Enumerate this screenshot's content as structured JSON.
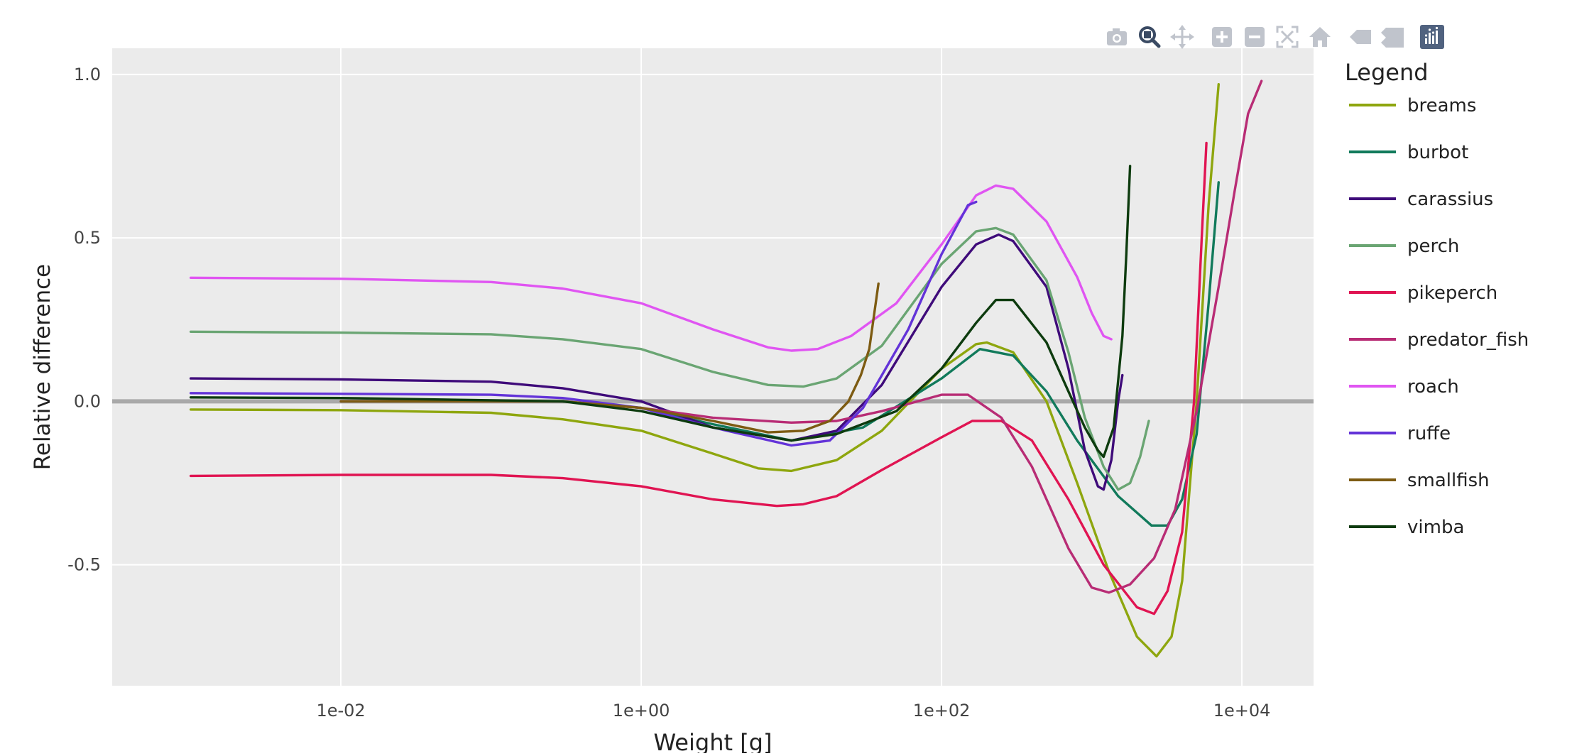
{
  "modebar": {
    "buttons": [
      {
        "name": "camera-icon"
      },
      {
        "name": "zoom-icon"
      },
      {
        "name": "pan-icon"
      },
      {
        "name": "zoom-in-icon"
      },
      {
        "name": "zoom-out-icon"
      },
      {
        "name": "autoscale-icon"
      },
      {
        "name": "reset-axes-icon"
      },
      {
        "name": "hover-closest-icon"
      },
      {
        "name": "hover-compare-icon"
      },
      {
        "name": "plotly-logo-icon"
      }
    ]
  },
  "chart_data": {
    "type": "line",
    "xlabel": "Weight [g]",
    "ylabel": "Relative difference",
    "xscale": "log",
    "xlim": [
      0.0003,
      30000
    ],
    "ylim": [
      -0.87,
      1.08
    ],
    "xticks": [
      0.01,
      1,
      100,
      10000
    ],
    "xtick_labels": [
      "1e-02",
      "1e+00",
      "1e+02",
      "1e+04"
    ],
    "yticks": [
      1.0,
      0.5,
      0.0,
      -0.5
    ],
    "ytick_labels": [
      "1.0",
      "0.5",
      "0.0",
      "-0.5"
    ],
    "grid": true,
    "background": "#ebebeb",
    "reference_line": {
      "y": 0,
      "color": "#a9a9a9"
    },
    "legend": {
      "title": "Legend",
      "position": "right"
    },
    "series": [
      {
        "name": "breams",
        "color": "#8ea60e",
        "points": [
          [
            0.001,
            -0.025
          ],
          [
            0.01,
            -0.027
          ],
          [
            0.1,
            -0.035
          ],
          [
            0.3,
            -0.055
          ],
          [
            1,
            -0.09
          ],
          [
            3,
            -0.16
          ],
          [
            6,
            -0.205
          ],
          [
            10,
            -0.213
          ],
          [
            20,
            -0.18
          ],
          [
            40,
            -0.09
          ],
          [
            100,
            0.1
          ],
          [
            170,
            0.175
          ],
          [
            200,
            0.18
          ],
          [
            300,
            0.15
          ],
          [
            500,
            0.0
          ],
          [
            800,
            -0.25
          ],
          [
            1300,
            -0.52
          ],
          [
            2000,
            -0.72
          ],
          [
            2700,
            -0.78
          ],
          [
            3400,
            -0.72
          ],
          [
            4000,
            -0.55
          ],
          [
            5000,
            0.0
          ],
          [
            6000,
            0.6
          ],
          [
            7000,
            0.97
          ]
        ]
      },
      {
        "name": "burbot",
        "color": "#117a5b",
        "points": [
          [
            0.01,
            0.0
          ],
          [
            0.3,
            0.0
          ],
          [
            1,
            -0.02
          ],
          [
            3,
            -0.07
          ],
          [
            10,
            -0.12
          ],
          [
            30,
            -0.08
          ],
          [
            100,
            0.07
          ],
          [
            180,
            0.16
          ],
          [
            300,
            0.14
          ],
          [
            500,
            0.03
          ],
          [
            800,
            -0.12
          ],
          [
            1500,
            -0.29
          ],
          [
            2500,
            -0.38
          ],
          [
            3200,
            -0.38
          ],
          [
            4000,
            -0.3
          ],
          [
            5000,
            -0.1
          ],
          [
            6000,
            0.3
          ],
          [
            7000,
            0.67
          ]
        ]
      },
      {
        "name": "carassius",
        "color": "#3f0b7a",
        "points": [
          [
            0.001,
            0.07
          ],
          [
            0.01,
            0.067
          ],
          [
            0.1,
            0.06
          ],
          [
            0.3,
            0.04
          ],
          [
            1,
            0.0
          ],
          [
            3,
            -0.08
          ],
          [
            10,
            -0.12
          ],
          [
            20,
            -0.09
          ],
          [
            40,
            0.05
          ],
          [
            100,
            0.35
          ],
          [
            170,
            0.48
          ],
          [
            240,
            0.51
          ],
          [
            300,
            0.49
          ],
          [
            500,
            0.35
          ],
          [
            700,
            0.1
          ],
          [
            900,
            -0.15
          ],
          [
            1100,
            -0.26
          ],
          [
            1200,
            -0.27
          ],
          [
            1350,
            -0.18
          ],
          [
            1500,
            0.0
          ],
          [
            1600,
            0.08
          ]
        ]
      },
      {
        "name": "perch",
        "color": "#6aa573",
        "points": [
          [
            0.001,
            0.213
          ],
          [
            0.01,
            0.21
          ],
          [
            0.1,
            0.205
          ],
          [
            0.3,
            0.19
          ],
          [
            1,
            0.16
          ],
          [
            3,
            0.09
          ],
          [
            7,
            0.05
          ],
          [
            12,
            0.045
          ],
          [
            20,
            0.07
          ],
          [
            40,
            0.17
          ],
          [
            100,
            0.42
          ],
          [
            170,
            0.52
          ],
          [
            230,
            0.53
          ],
          [
            300,
            0.51
          ],
          [
            500,
            0.37
          ],
          [
            700,
            0.15
          ],
          [
            900,
            -0.05
          ],
          [
            1200,
            -0.2
          ],
          [
            1500,
            -0.27
          ],
          [
            1800,
            -0.25
          ],
          [
            2100,
            -0.17
          ],
          [
            2400,
            -0.06
          ]
        ]
      },
      {
        "name": "pikeperch",
        "color": "#e01452",
        "points": [
          [
            0.001,
            -0.228
          ],
          [
            0.01,
            -0.225
          ],
          [
            0.1,
            -0.225
          ],
          [
            0.3,
            -0.235
          ],
          [
            1,
            -0.26
          ],
          [
            3,
            -0.3
          ],
          [
            8,
            -0.32
          ],
          [
            12,
            -0.315
          ],
          [
            20,
            -0.29
          ],
          [
            40,
            -0.21
          ],
          [
            100,
            -0.11
          ],
          [
            160,
            -0.06
          ],
          [
            250,
            -0.06
          ],
          [
            400,
            -0.12
          ],
          [
            700,
            -0.3
          ],
          [
            1200,
            -0.5
          ],
          [
            2000,
            -0.63
          ],
          [
            2600,
            -0.65
          ],
          [
            3200,
            -0.58
          ],
          [
            4000,
            -0.4
          ],
          [
            4800,
            0.0
          ],
          [
            5400,
            0.5
          ],
          [
            5800,
            0.79
          ]
        ]
      },
      {
        "name": "predator_fish",
        "color": "#b82c75",
        "points": [
          [
            0.01,
            0.0
          ],
          [
            0.3,
            0.0
          ],
          [
            1,
            -0.02
          ],
          [
            3,
            -0.05
          ],
          [
            10,
            -0.065
          ],
          [
            20,
            -0.06
          ],
          [
            40,
            -0.03
          ],
          [
            100,
            0.02
          ],
          [
            150,
            0.02
          ],
          [
            250,
            -0.05
          ],
          [
            400,
            -0.2
          ],
          [
            700,
            -0.45
          ],
          [
            1000,
            -0.57
          ],
          [
            1300,
            -0.585
          ],
          [
            1800,
            -0.56
          ],
          [
            2600,
            -0.48
          ],
          [
            3600,
            -0.33
          ],
          [
            5000,
            -0.03
          ],
          [
            7000,
            0.35
          ],
          [
            9000,
            0.65
          ],
          [
            11000,
            0.88
          ],
          [
            13500,
            0.98
          ]
        ]
      },
      {
        "name": "roach",
        "color": "#e055f2",
        "points": [
          [
            0.001,
            0.378
          ],
          [
            0.01,
            0.375
          ],
          [
            0.1,
            0.365
          ],
          [
            0.3,
            0.345
          ],
          [
            1,
            0.3
          ],
          [
            3,
            0.22
          ],
          [
            7,
            0.165
          ],
          [
            10,
            0.155
          ],
          [
            15,
            0.16
          ],
          [
            25,
            0.2
          ],
          [
            50,
            0.3
          ],
          [
            100,
            0.48
          ],
          [
            170,
            0.63
          ],
          [
            230,
            0.66
          ],
          [
            300,
            0.65
          ],
          [
            500,
            0.55
          ],
          [
            800,
            0.38
          ],
          [
            1000,
            0.27
          ],
          [
            1200,
            0.2
          ],
          [
            1350,
            0.19
          ]
        ]
      },
      {
        "name": "ruffe",
        "color": "#6333d8",
        "points": [
          [
            0.001,
            0.025
          ],
          [
            0.01,
            0.023
          ],
          [
            0.1,
            0.02
          ],
          [
            0.3,
            0.01
          ],
          [
            1,
            -0.02
          ],
          [
            3,
            -0.08
          ],
          [
            10,
            -0.135
          ],
          [
            18,
            -0.12
          ],
          [
            30,
            -0.02
          ],
          [
            60,
            0.22
          ],
          [
            100,
            0.45
          ],
          [
            150,
            0.6
          ],
          [
            170,
            0.61
          ]
        ]
      },
      {
        "name": "smallfish",
        "color": "#7d5b12",
        "points": [
          [
            0.01,
            0.0
          ],
          [
            0.3,
            0.0
          ],
          [
            1,
            -0.02
          ],
          [
            3,
            -0.06
          ],
          [
            7,
            -0.095
          ],
          [
            12,
            -0.09
          ],
          [
            18,
            -0.06
          ],
          [
            24,
            0.0
          ],
          [
            29,
            0.08
          ],
          [
            33,
            0.16
          ],
          [
            38,
            0.36
          ]
        ]
      },
      {
        "name": "vimba",
        "color": "#0d3b0e",
        "points": [
          [
            0.001,
            0.012
          ],
          [
            0.01,
            0.01
          ],
          [
            0.3,
            0.0
          ],
          [
            1,
            -0.03
          ],
          [
            3,
            -0.08
          ],
          [
            10,
            -0.12
          ],
          [
            20,
            -0.1
          ],
          [
            50,
            -0.03
          ],
          [
            100,
            0.1
          ],
          [
            170,
            0.24
          ],
          [
            230,
            0.31
          ],
          [
            300,
            0.31
          ],
          [
            500,
            0.18
          ],
          [
            700,
            0.03
          ],
          [
            900,
            -0.08
          ],
          [
            1100,
            -0.15
          ],
          [
            1200,
            -0.17
          ],
          [
            1400,
            -0.08
          ],
          [
            1600,
            0.2
          ],
          [
            1700,
            0.45
          ],
          [
            1800,
            0.72
          ]
        ]
      }
    ]
  }
}
